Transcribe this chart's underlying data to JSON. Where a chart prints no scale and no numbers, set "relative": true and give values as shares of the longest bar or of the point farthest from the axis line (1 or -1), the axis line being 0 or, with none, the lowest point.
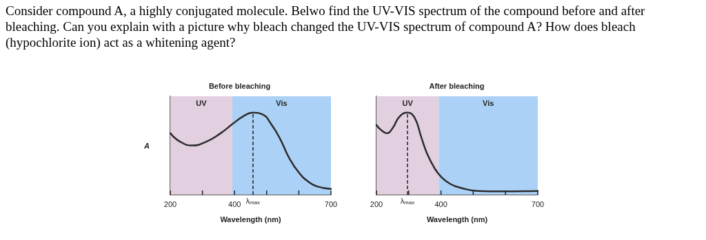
{
  "chart_data": [
    {
      "type": "line",
      "title": "Before bleaching",
      "xlabel": "Wavelength (nm)",
      "ylabel": "A",
      "relative": true,
      "annotations": [
        "Consider compound A, a highly conjugated molecule. Belwo find the UV-VIS spectrum of the compound before and after bleaching. Can you explain with a picture why bleach changed the UV-VIS spectrum of compound A? How does bleach (hypochlorite ion) act as a whitening agent?"
      ],
      "xlim": [
        200,
        700
      ],
      "xticks": [
        200,
        {
          "value": 300,
          "label": null
        },
        400,
        {
          "value": 500,
          "label": null
        },
        {
          "value": 600,
          "label": null
        },
        700
      ],
      "grid": false,
      "marker": "none",
      "line_style": "solid",
      "tick_labels": "x",
      "bands": [
        {
          "axis": "x",
          "from": 200,
          "to": 393,
          "label": "UV",
          "color": "#e2d0e0"
        },
        {
          "axis": "x",
          "from": 393,
          "to": 700,
          "label": "Vis",
          "color": "#acd1f6"
        }
      ],
      "ref_lines": [
        {
          "axis": "x",
          "value": 457,
          "label": "λ$_{max}$",
          "line_style": "dashed"
        }
      ],
      "series": [
        {
          "color": "#2b2b2b",
          "x": [
            200,
            229,
            268,
            314,
            357,
            393,
            429,
            457,
            486,
            514,
            543,
            571,
            600,
            629,
            657,
            700
          ],
          "values": [
            0.75,
            0.65,
            0.6,
            0.65,
            0.75,
            0.86,
            0.96,
            1.0,
            0.98,
            0.86,
            0.67,
            0.44,
            0.27,
            0.16,
            0.1,
            0.07
          ]
        }
      ]
    },
    {
      "type": "line",
      "title": "After bleaching",
      "xlabel": "Wavelength (nm)",
      "relative": true,
      "xlim": [
        200,
        700
      ],
      "xticks": [
        200,
        {
          "value": 300,
          "label": null
        },
        400,
        {
          "value": 500,
          "label": null
        },
        {
          "value": 600,
          "label": null
        },
        700
      ],
      "grid": false,
      "marker": "none",
      "line_style": "solid",
      "tick_labels": "x",
      "bands": [
        {
          "axis": "x",
          "from": 200,
          "to": 393,
          "label": "UV",
          "color": "#e2d0e0"
        },
        {
          "axis": "x",
          "from": 393,
          "to": 700,
          "label": "Vis",
          "color": "#acd1f6"
        }
      ],
      "ref_lines": [
        {
          "axis": "x",
          "value": 296,
          "label": "λ$_{max}$",
          "line_style": "dashed"
        }
      ],
      "series": [
        {
          "color": "#2b2b2b",
          "x": [
            200,
            214,
            232,
            250,
            271,
            296,
            318,
            339,
            357,
            379,
            400,
            429,
            464,
            514,
            586,
            700
          ],
          "values": [
            0.85,
            0.79,
            0.75,
            0.81,
            0.95,
            1.0,
            0.94,
            0.7,
            0.5,
            0.33,
            0.22,
            0.13,
            0.08,
            0.045,
            0.04,
            0.045
          ]
        }
      ]
    }
  ]
}
